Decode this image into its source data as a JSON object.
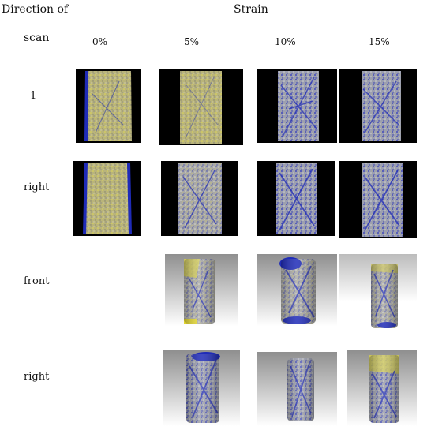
{
  "labels": {
    "direction_line1": "Direction of",
    "direction_line2": "scan",
    "strain": "Strain"
  },
  "strain_columns": [
    "0%",
    "5%",
    "10%",
    "15%"
  ],
  "rows": [
    {
      "label": "1"
    },
    {
      "label": "right"
    },
    {
      "label": "front"
    },
    {
      "label": "right"
    }
  ],
  "colors": {
    "yellow": "#c9c25c",
    "grey": "#9a9a94",
    "blue": "#1f2bb8",
    "black": "#000000"
  }
}
